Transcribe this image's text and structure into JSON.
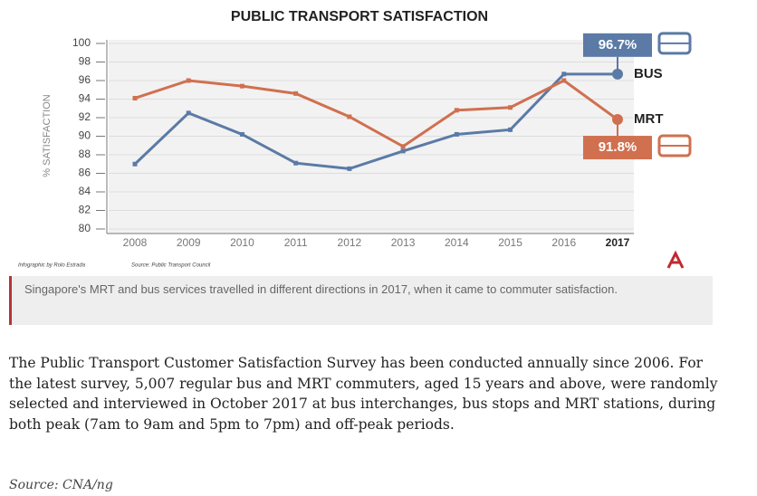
{
  "chart_data": {
    "type": "line",
    "title": "PUBLIC TRANSPORT SATISFACTION",
    "y_label": "% SATISFACTION",
    "categories": [
      "2008",
      "2009",
      "2010",
      "2011",
      "2012",
      "2013",
      "2014",
      "2015",
      "2016",
      "2017"
    ],
    "series": [
      {
        "name": "BUS",
        "color": "#5b7aa6",
        "values": [
          87.0,
          92.5,
          90.2,
          87.1,
          86.5,
          88.4,
          90.2,
          90.7,
          96.7,
          96.7
        ],
        "value_labels": [
          null,
          null,
          null,
          null,
          null,
          null,
          null,
          null,
          null,
          "96.7%"
        ]
      },
      {
        "name": "MRT",
        "color": "#d0704f",
        "values": [
          94.1,
          96.0,
          95.4,
          94.6,
          92.1,
          88.9,
          92.8,
          93.1,
          96.0,
          91.8
        ],
        "value_labels": [
          null,
          null,
          null,
          null,
          null,
          null,
          null,
          null,
          null,
          "91.8%"
        ]
      }
    ],
    "ylim": [
      80,
      100
    ],
    "yticks": [
      80,
      82,
      84,
      86,
      88,
      90,
      92,
      94,
      96,
      98,
      100
    ],
    "grid": true,
    "credit": "Infographic by Rolo Estrada",
    "source": "Source: Public Transport Council"
  },
  "caption": "Singapore's MRT and bus services travelled in different directions in 2017, when it came to commuter satisfaction.",
  "body": "The Public Transport Customer Satisfaction Survey has been conducted annually since 2006. For the latest survey, 5,007 regular bus and MRT commuters, aged 15 years and above, were randomly selected and interviewed in October 2017 at bus interchanges, bus stops and MRT stations, during both peak (7am to 9am and 5pm to 7pm) and off-peak periods.",
  "source_line": "Source: CNA/ng"
}
